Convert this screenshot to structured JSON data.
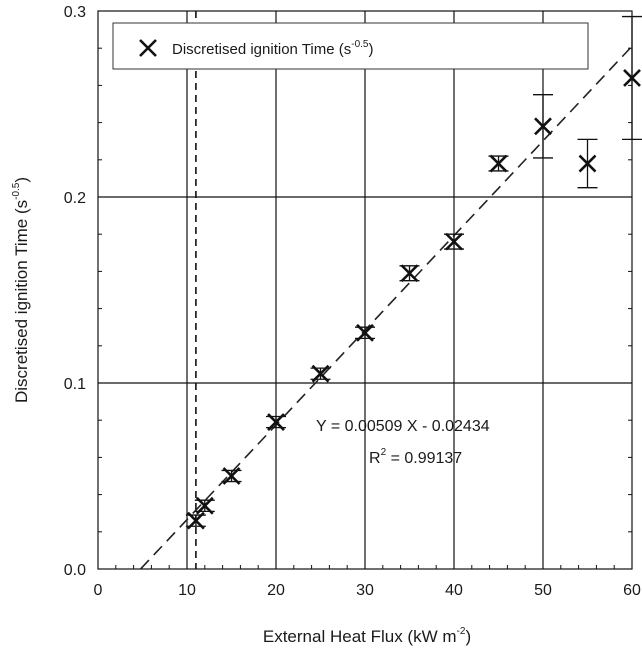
{
  "chart_data": {
    "type": "scatter",
    "xlabel": {
      "main": "External Heat Flux (kW m",
      "sup": "-2",
      "end": ")"
    },
    "ylabel": {
      "main": "Discretised ignition Time (s",
      "sup": "-0.5",
      "end": ")"
    },
    "xlim": [
      0,
      60
    ],
    "ylim": [
      0,
      0.3
    ],
    "x_ticks": [
      0,
      10,
      20,
      30,
      40,
      50,
      60
    ],
    "x_tick_labels": [
      "0",
      "10",
      "20",
      "30",
      "40",
      "50",
      "60"
    ],
    "y_ticks": [
      0,
      0.1,
      0.2,
      0.3
    ],
    "y_tick_labels": [
      "0.0",
      "0.1",
      "0.2",
      "0.3"
    ],
    "grid": true,
    "legend": {
      "position": "top-left",
      "label_main": "Discretised ignition Time (s",
      "label_sup": "-0.5",
      "label_end": ")"
    },
    "series": [
      {
        "name": "Discretised ignition Time (s-0.5)",
        "marker": "x",
        "points": [
          {
            "x": 11,
            "y": 0.026,
            "err": 0.003
          },
          {
            "x": 12,
            "y": 0.034,
            "err": 0.003
          },
          {
            "x": 15,
            "y": 0.05,
            "err": 0.003
          },
          {
            "x": 20,
            "y": 0.079,
            "err": 0.003
          },
          {
            "x": 25,
            "y": 0.105,
            "err": 0.003
          },
          {
            "x": 30,
            "y": 0.127,
            "err": 0.003
          },
          {
            "x": 35,
            "y": 0.159,
            "err": 0.004
          },
          {
            "x": 40,
            "y": 0.176,
            "err": 0.004
          },
          {
            "x": 45,
            "y": 0.218,
            "err": 0.004
          },
          {
            "x": 50,
            "y": 0.238,
            "err": 0.017
          },
          {
            "x": 55,
            "y": 0.218,
            "err": 0.013
          },
          {
            "x": 60,
            "y": 0.264,
            "err": 0.033
          }
        ]
      }
    ],
    "fit_line": {
      "slope": 0.00509,
      "intercept": -0.02434,
      "x_range": [
        4.8,
        60
      ]
    },
    "critical_flux_line": {
      "x": 11
    },
    "annotations": {
      "equation": "Y = 0.00509 X - 0.02434",
      "r2_prefix": "R",
      "r2_sup": "2",
      "r2_value": " = 0.99137"
    }
  }
}
